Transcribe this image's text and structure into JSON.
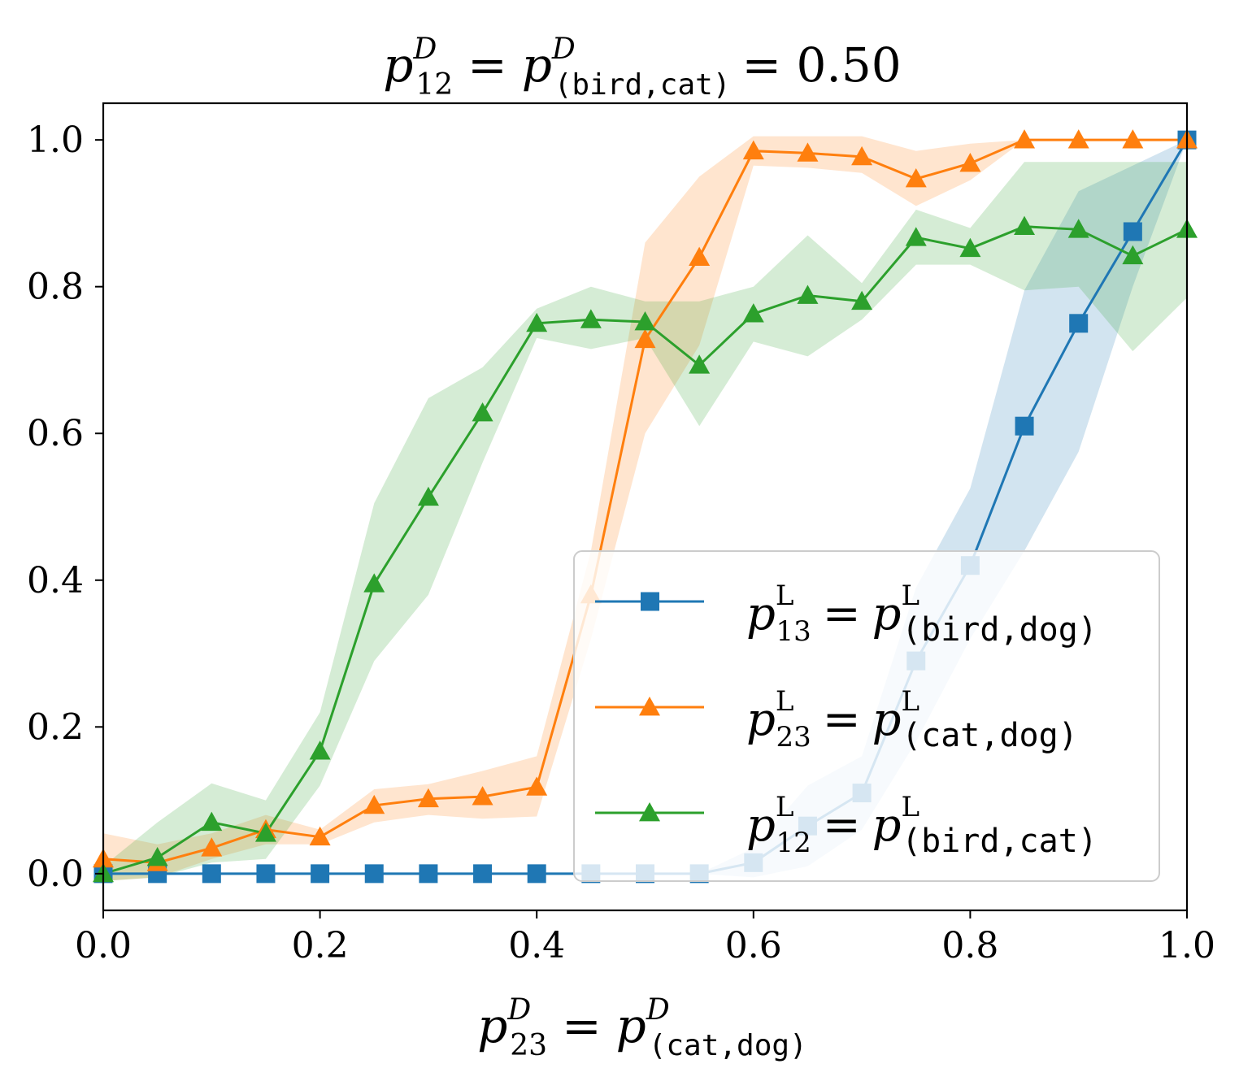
{
  "chart_data": {
    "type": "line",
    "title": {
      "lhs_sub": "12",
      "mid_sub": "(bird,cat)",
      "value": "0.50",
      "sup": "D",
      "eq": "=",
      "rhs_eq": "= 0.50"
    },
    "xlabel": {
      "lhs_sub": "23",
      "rhs_sub": "(cat,dog)",
      "sup": "D",
      "eq": "="
    },
    "x": [
      0.0,
      0.05,
      0.1,
      0.15,
      0.2,
      0.25,
      0.3,
      0.35,
      0.4,
      0.45,
      0.5,
      0.55,
      0.6,
      0.65,
      0.7,
      0.75,
      0.8,
      0.85,
      0.9,
      0.95,
      1.0
    ],
    "xlim": [
      0.0,
      1.0
    ],
    "ylim": [
      -0.05,
      1.05
    ],
    "xticks": [
      "0.0",
      "0.2",
      "0.4",
      "0.6",
      "0.8",
      "1.0"
    ],
    "yticks": [
      "0.0",
      "0.2",
      "0.4",
      "0.6",
      "0.8",
      "1.0"
    ],
    "legend_position": "lower-right",
    "series": [
      {
        "name": "p13 = p(bird,dog)",
        "legend": {
          "sub": "13",
          "sup": "L",
          "pair": "(bird,dog)"
        },
        "color": "#1f77b4",
        "marker": "square",
        "values": [
          0.0,
          0.0,
          0.0,
          0.0,
          0.0,
          0.0,
          0.0,
          0.0,
          0.0,
          0.0,
          0.0,
          0.0,
          0.015,
          0.065,
          0.11,
          0.29,
          0.42,
          0.61,
          0.75,
          0.875,
          1.0
        ],
        "lower": [
          0.0,
          0.0,
          0.0,
          0.0,
          0.0,
          0.0,
          0.0,
          0.0,
          0.0,
          0.0,
          0.0,
          0.0,
          -0.005,
          0.01,
          0.06,
          0.18,
          0.32,
          0.44,
          0.575,
          0.8,
          1.0
        ],
        "upper": [
          0.0,
          0.0,
          0.0,
          0.0,
          0.0,
          0.0,
          0.0,
          0.0,
          0.0,
          0.0,
          0.0,
          0.0,
          0.035,
          0.12,
          0.16,
          0.39,
          0.525,
          0.795,
          0.93,
          0.965,
          1.0
        ]
      },
      {
        "name": "p23 = p(cat,dog)",
        "legend": {
          "sub": "23",
          "sup": "L",
          "pair": "(cat,dog)"
        },
        "color": "#ff7f0e",
        "marker": "triangle",
        "values": [
          0.02,
          0.015,
          0.035,
          0.06,
          0.05,
          0.093,
          0.102,
          0.105,
          0.118,
          0.38,
          0.728,
          0.84,
          0.985,
          0.982,
          0.977,
          0.947,
          0.968,
          1.0,
          1.0,
          1.0,
          1.0
        ],
        "lower": [
          -0.01,
          -0.005,
          0.02,
          0.04,
          0.04,
          0.07,
          0.08,
          0.075,
          0.078,
          0.32,
          0.6,
          0.72,
          0.965,
          0.962,
          0.955,
          0.91,
          0.945,
          1.0,
          1.0,
          1.0,
          1.0
        ],
        "upper": [
          0.055,
          0.04,
          0.055,
          0.08,
          0.06,
          0.115,
          0.122,
          0.14,
          0.16,
          0.44,
          0.86,
          0.95,
          1.005,
          1.005,
          1.005,
          0.985,
          0.995,
          1.0,
          1.0,
          1.0,
          1.0
        ]
      },
      {
        "name": "p12 = p(bird,cat)",
        "legend": {
          "sub": "12",
          "sup": "L",
          "pair": "(bird,cat)"
        },
        "color": "#2ca02c",
        "marker": "triangle",
        "values": [
          0.0,
          0.022,
          0.07,
          0.055,
          0.167,
          0.395,
          0.513,
          0.628,
          0.75,
          0.755,
          0.752,
          0.693,
          0.763,
          0.788,
          0.78,
          0.867,
          0.852,
          0.882,
          0.878,
          0.842,
          0.878
        ],
        "lower": [
          -0.01,
          -0.005,
          0.015,
          0.02,
          0.12,
          0.29,
          0.38,
          0.56,
          0.73,
          0.715,
          0.73,
          0.61,
          0.725,
          0.705,
          0.755,
          0.83,
          0.83,
          0.795,
          0.8,
          0.712,
          0.785
        ],
        "upper": [
          0.01,
          0.07,
          0.123,
          0.1,
          0.22,
          0.505,
          0.648,
          0.69,
          0.77,
          0.8,
          0.78,
          0.78,
          0.8,
          0.87,
          0.805,
          0.905,
          0.88,
          0.97,
          0.97,
          0.97,
          0.97
        ]
      }
    ]
  }
}
